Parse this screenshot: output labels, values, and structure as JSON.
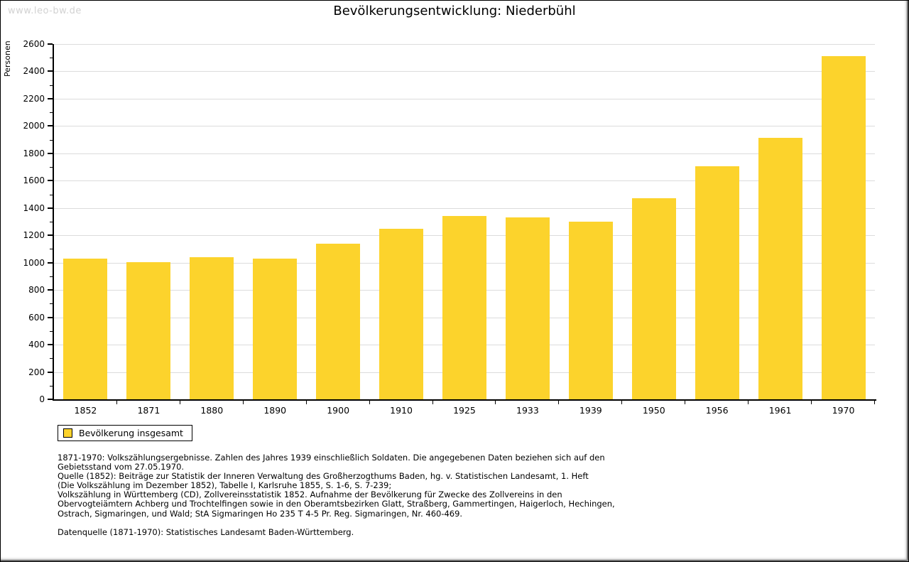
{
  "watermark": "www.leo-bw.de",
  "header": {
    "title": "Bevölkerungsentwicklung: Niederbühl"
  },
  "chart_data": {
    "type": "bar",
    "title": "Bevölkerungsentwicklung: Niederbühl",
    "xlabel": "",
    "ylabel": "Personen",
    "categories": [
      "1852",
      "1871",
      "1880",
      "1890",
      "1900",
      "1910",
      "1925",
      "1933",
      "1939",
      "1950",
      "1956",
      "1961",
      "1970"
    ],
    "series": [
      {
        "name": "Bevölkerung insgesamt",
        "values": [
          1030,
          1005,
          1040,
          1030,
          1140,
          1248,
          1340,
          1333,
          1300,
          1470,
          1705,
          1912,
          2510
        ]
      }
    ],
    "ylim": [
      0,
      2600
    ],
    "ytick_step": 200,
    "ytick_minor_step": 100,
    "grid": true,
    "legend_position": "bottom-left",
    "bar_color": "#FCD32C",
    "gridline_color": "#dcdcdc"
  },
  "legend": {
    "label": "Bevölkerung insgesamt",
    "swatch_color": "#FCD32C"
  },
  "footnotes": {
    "lines": [
      "1871-1970: Volkszählungsergebnisse. Zahlen des Jahres 1939 einschließlich Soldaten. Die angegebenen Daten beziehen sich auf den",
      "Gebietsstand vom 27.05.1970.",
      "Quelle (1852): Beiträge zur Statistik der Inneren Verwaltung des Großherzogthums Baden, hg. v. Statistischen Landesamt, 1. Heft",
      "(Die Volkszählung im Dezember 1852), Tabelle I, Karlsruhe 1855, S. 1-6, S. 7-239;",
      "Volkszählung in Württemberg (CD), Zollvereinsstatistik 1852. Aufnahme der Bevölkerung für Zwecke des Zollvereins in den",
      "Obervogteiämtern Achberg und Trochtelfingen sowie in den Oberamtsbezirken Glatt, Straßberg, Gammertingen, Haigerloch, Hechingen,",
      "Ostrach, Sigmaringen, und Wald; StA Sigmaringen Ho 235 T 4-5 Pr. Reg. Sigmaringen, Nr. 460-469."
    ],
    "datasource": "Datenquelle (1871-1970): Statistisches Landesamt Baden-Württemberg."
  }
}
